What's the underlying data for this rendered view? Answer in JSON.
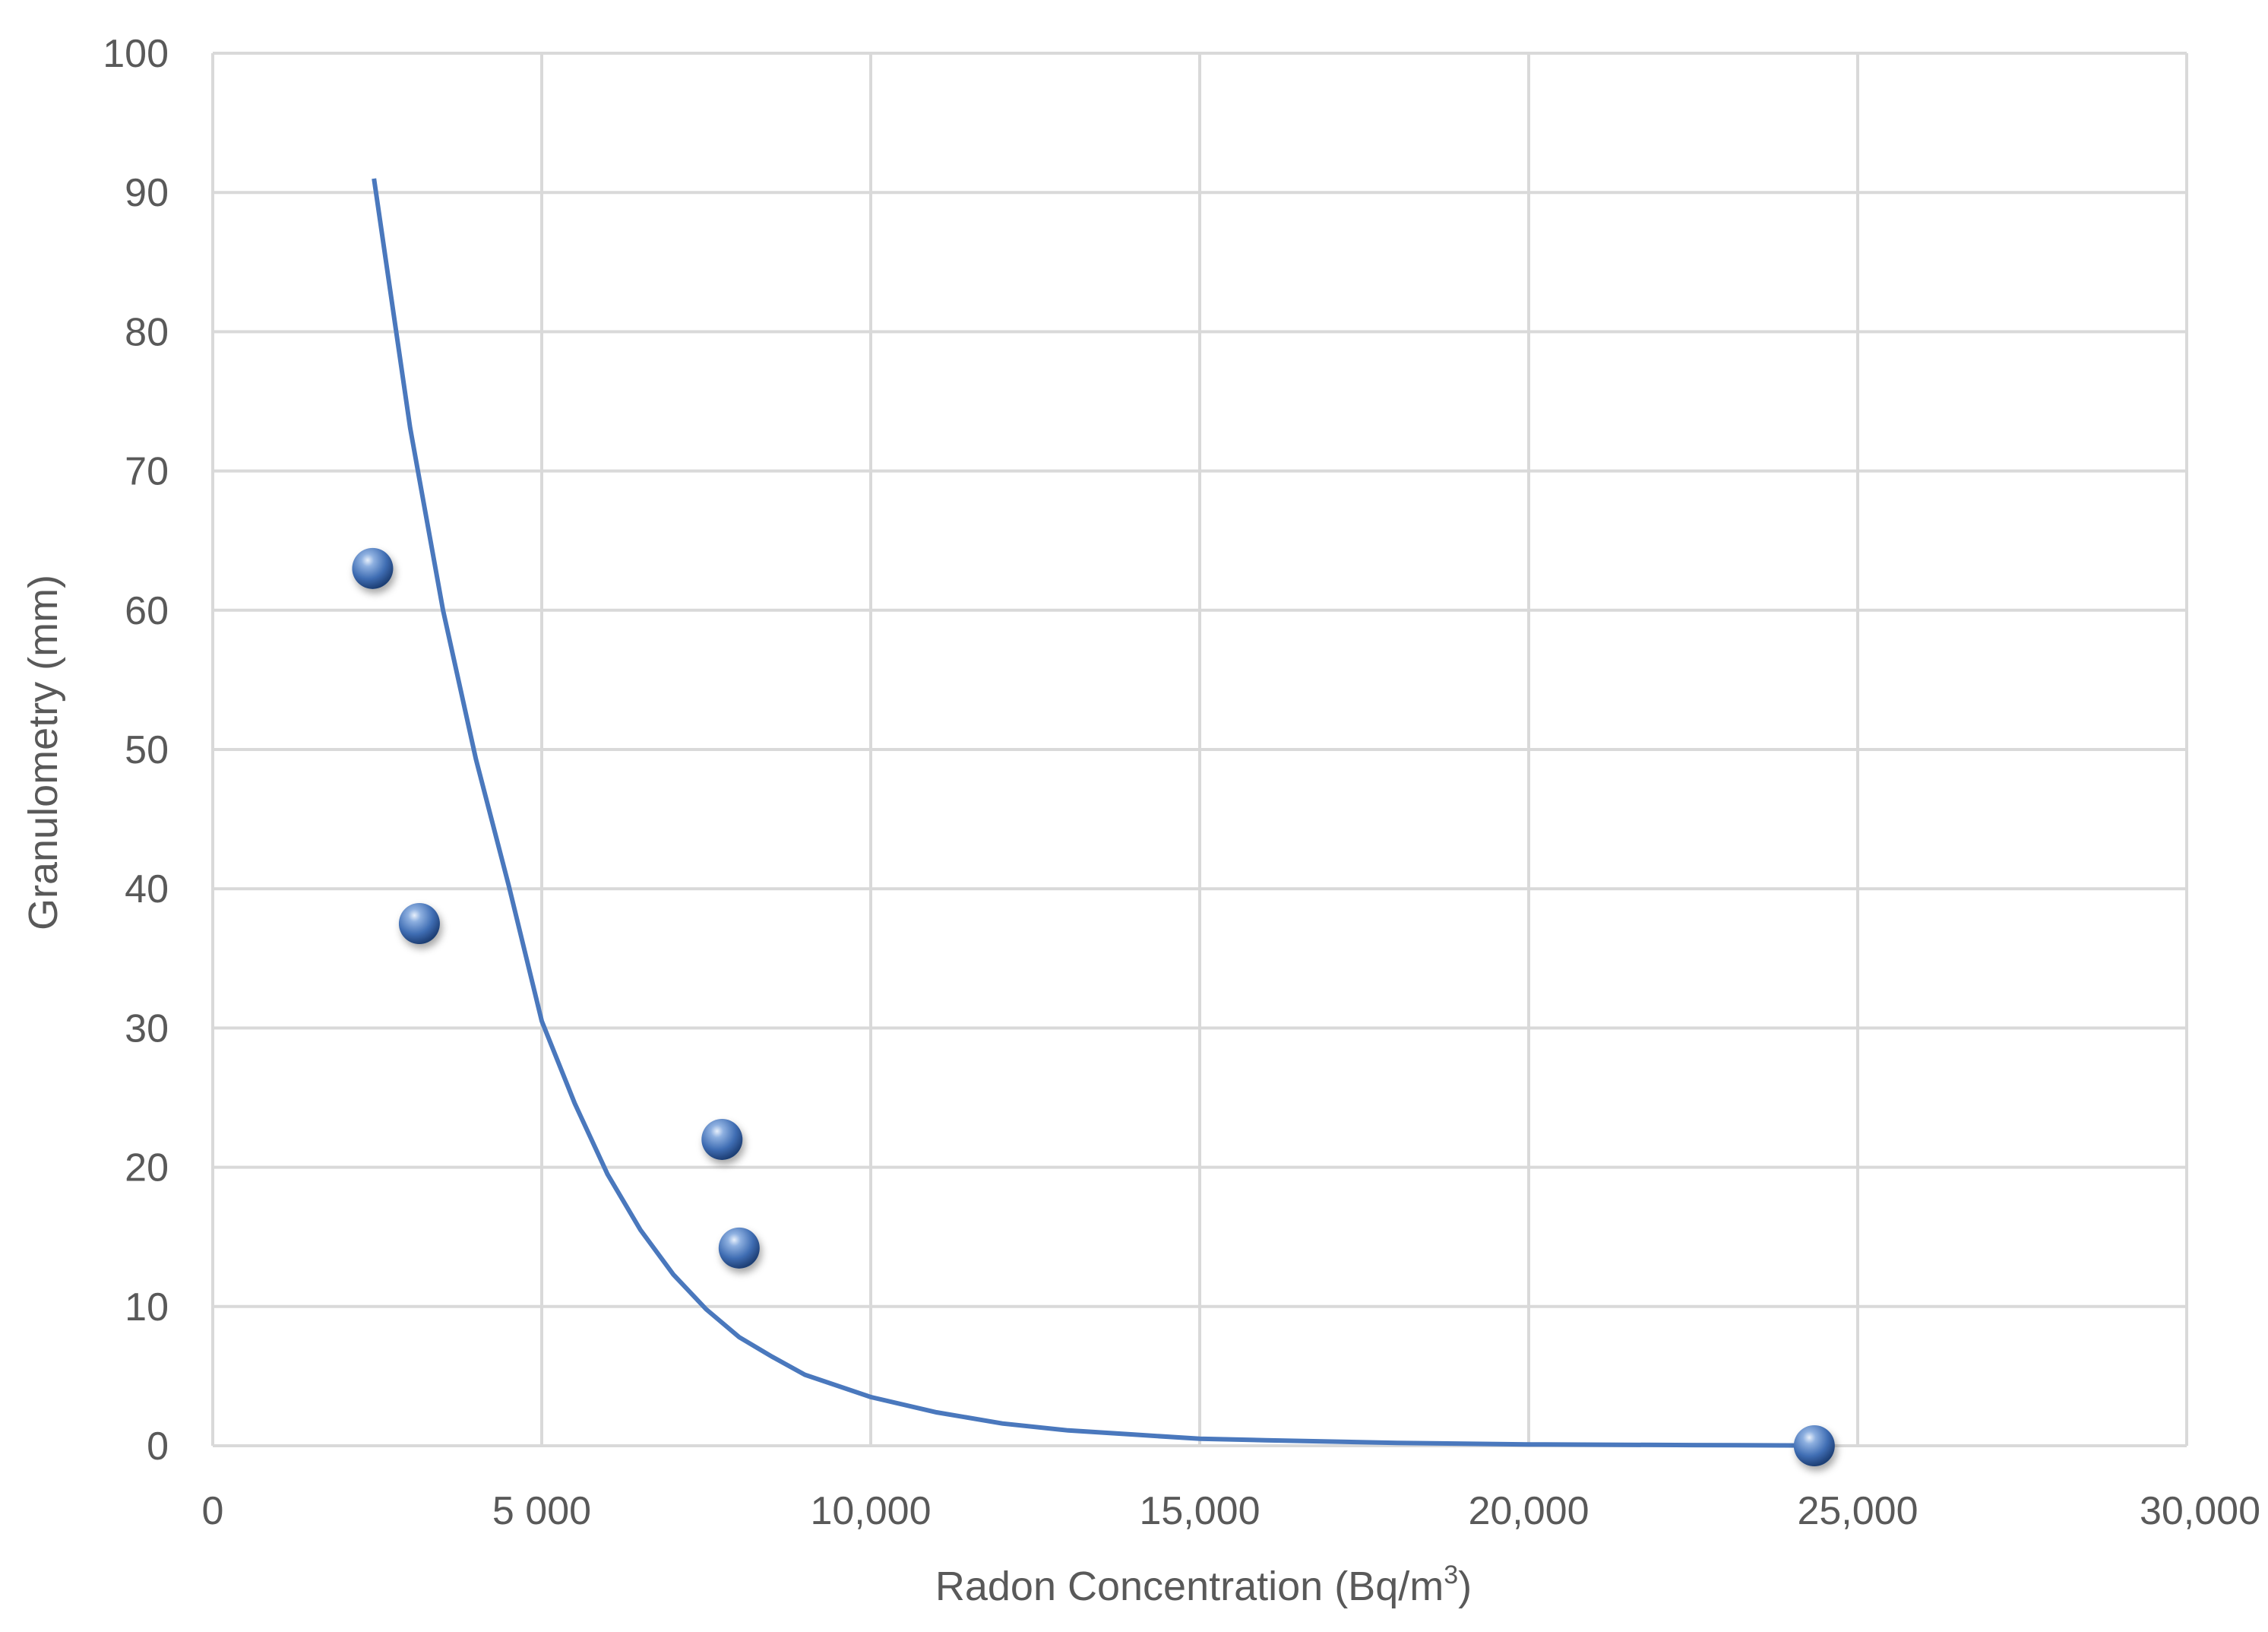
{
  "chart_data": {
    "type": "scatter",
    "title": "",
    "xlabel": "Radon Concentration (Bq/m",
    "xlabel_sup": "3",
    "xlabel_end": ")",
    "ylabel": "Granulometry (mm)",
    "xlim": [
      0,
      30000
    ],
    "ylim": [
      0,
      100
    ],
    "x_ticks": [
      0,
      5000,
      10000,
      15000,
      20000,
      25000,
      30000
    ],
    "x_tick_labels": [
      "0",
      "5 000",
      "10,000",
      "15,000",
      "20,000",
      "25,000",
      "30,000"
    ],
    "y_ticks": [
      0,
      10,
      20,
      30,
      40,
      50,
      60,
      70,
      80,
      90,
      100
    ],
    "y_tick_labels": [
      "0",
      "10",
      "20",
      "30",
      "40",
      "50",
      "60",
      "70",
      "80",
      "90",
      "100"
    ],
    "grid": true,
    "series": [
      {
        "type": "scatter",
        "x": [
          2430,
          3140,
          7740,
          8000,
          24340
        ],
        "y": [
          63,
          37.5,
          22,
          14.2,
          0
        ],
        "color": "#4a78bd"
      },
      {
        "type": "line",
        "fit": "exponential",
        "x": [
          2450,
          3000,
          3500,
          4000,
          4500,
          5000,
          5500,
          6000,
          6500,
          7000,
          7500,
          8000,
          8500,
          9000,
          10000,
          11000,
          12000,
          13000,
          14000,
          15000,
          16000,
          18000,
          20000,
          22500,
          24200
        ],
        "y": [
          91,
          73.1,
          60,
          49.3,
          40.2,
          30.5,
          24.6,
          19.5,
          15.5,
          12.3,
          9.8,
          7.8,
          6.4,
          5.1,
          3.5,
          2.4,
          1.6,
          1.1,
          0.8,
          0.5,
          0.4,
          0.2,
          0.1,
          0.05,
          0.02
        ],
        "color": "#4a78bd"
      }
    ]
  }
}
